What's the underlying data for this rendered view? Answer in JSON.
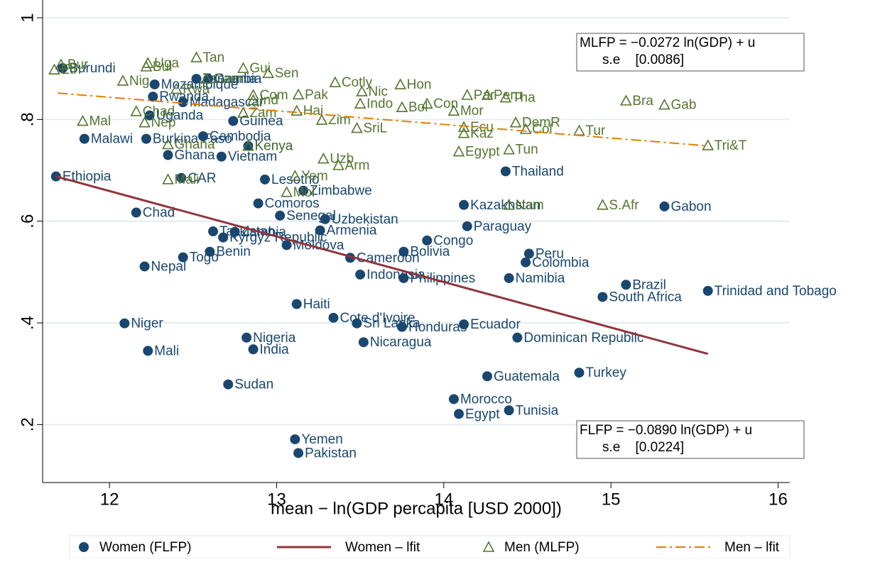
{
  "chart_data": {
    "type": "scatter",
    "xlabel": "mean − ln(GDP percapita [USD 2000])",
    "xlim": [
      11.6,
      16.07
    ],
    "ylim": [
      0.086,
      1.035
    ],
    "xticks": [
      12,
      13,
      14,
      15,
      16
    ],
    "yticks": [
      {
        "value": 0.2,
        "label": ".2"
      },
      {
        "value": 0.4,
        "label": ".4"
      },
      {
        "value": 0.6,
        "label": ".6"
      },
      {
        "value": 0.8,
        "label": ".8"
      },
      1
    ],
    "grid": true,
    "series": [
      {
        "name": "Women (FLFP)",
        "marker": "circle",
        "color": "#1a476f",
        "point_labels": [
          "Ethiopia",
          "Burundi",
          "Malawi",
          "Niger",
          "Chad",
          "Nepal",
          "Burkina Faso",
          "Mali",
          "Uganda",
          "Rwanda",
          "Mozambique",
          "Ghana",
          "CAR",
          "Madagascar",
          "Togo",
          "Tanzania",
          "Gambia",
          "Cambodia",
          "Benin",
          "Tajikistan",
          "Vietnam",
          "Kyrgyz Republic",
          "Sudan",
          "Zambia",
          "Guinea",
          "Nigeria",
          "Kenya",
          "India",
          "Comoros",
          "Lesotho",
          "Senegal",
          "Moldova",
          "Yemen",
          "Haiti",
          "Pakistan",
          "Zimbabwe",
          "Armenia",
          "Uzbekistan",
          "Cote d'Ivoire",
          "Cameroon",
          "Sri Lanka",
          "Indonesia",
          "Nicaragua",
          "Honduras",
          "Bolivia",
          "Philippines",
          "Congo",
          "Morocco",
          "Egypt",
          "Kazakhstan",
          "Ecuador",
          "Paraguay",
          "Guatemala",
          "Thailand",
          "Namibia",
          "Tunisia",
          "Dominican Republic",
          "Colombia",
          "Peru",
          "Turkey",
          "South Africa",
          "Brazil",
          "Gabon",
          "Trinidad and Tobago"
        ],
        "x": [
          11.68,
          11.72,
          11.85,
          12.09,
          12.16,
          12.21,
          12.22,
          12.23,
          12.24,
          12.26,
          12.27,
          12.35,
          12.43,
          12.44,
          12.44,
          12.52,
          12.59,
          12.56,
          12.6,
          12.62,
          12.67,
          12.68,
          12.71,
          12.75,
          12.74,
          12.82,
          12.83,
          12.86,
          12.89,
          12.93,
          13.02,
          13.06,
          13.11,
          13.12,
          13.13,
          13.16,
          13.26,
          13.29,
          13.34,
          13.44,
          13.48,
          13.5,
          13.52,
          13.75,
          13.76,
          13.76,
          13.9,
          14.06,
          14.09,
          14.12,
          14.12,
          14.14,
          14.26,
          14.37,
          14.39,
          14.39,
          14.44,
          14.49,
          14.51,
          14.81,
          14.95,
          15.09,
          15.32,
          15.58
        ],
        "values": [
          0.688,
          0.901,
          0.762,
          0.399,
          0.617,
          0.511,
          0.762,
          0.345,
          0.808,
          0.845,
          0.869,
          0.73,
          0.685,
          0.834,
          0.529,
          0.88,
          0.88,
          0.767,
          0.54,
          0.58,
          0.727,
          0.568,
          0.279,
          0.579,
          0.797,
          0.371,
          0.748,
          0.348,
          0.635,
          0.682,
          0.611,
          0.553,
          0.171,
          0.437,
          0.144,
          0.66,
          0.582,
          0.604,
          0.41,
          0.528,
          0.399,
          0.495,
          0.362,
          0.392,
          0.54,
          0.488,
          0.562,
          0.25,
          0.221,
          0.632,
          0.397,
          0.59,
          0.295,
          0.698,
          0.488,
          0.228,
          0.371,
          0.519,
          0.536,
          0.302,
          0.451,
          0.475,
          0.629,
          0.463
        ]
      },
      {
        "name": "Women – lfit",
        "marker": "line",
        "dash": "solid",
        "color": "#90353b",
        "x": [
          11.68,
          15.58
        ],
        "values": [
          0.688,
          0.339
        ]
      },
      {
        "name": "Men (MLFP)",
        "marker": "triangle",
        "color": "#55752f",
        "point_labels": [
          "Eth",
          "Bur",
          "Mal",
          "Nig",
          "Chad",
          "Nep",
          "Bul",
          "Uga",
          "Ghana",
          "Mali",
          "Rwa",
          "Tan",
          "Gam",
          "Zam",
          "Gui",
          "Kenya",
          "Com",
          "Ind",
          "Sen",
          "Mol",
          "Yem",
          "Hai",
          "Pak",
          "Zim",
          "Uzb",
          "Cotly",
          "Arm",
          "SriL",
          "Indo",
          "Nic",
          "Hon",
          "Bol",
          "Con",
          "Mor",
          "Egypt",
          "Ecu",
          "Kaz",
          "Par",
          "Peru",
          "Tha",
          "Tun",
          "Nam",
          "DemR",
          "Col",
          "Tur",
          "S.Afr",
          "Bra",
          "Gab",
          "Tri&T"
        ],
        "x": [
          11.67,
          11.71,
          11.84,
          12.08,
          12.16,
          12.21,
          12.22,
          12.23,
          12.35,
          12.35,
          12.4,
          12.52,
          12.58,
          12.8,
          12.8,
          12.83,
          12.86,
          12.86,
          12.95,
          13.06,
          13.11,
          13.12,
          13.13,
          13.27,
          13.28,
          13.35,
          13.37,
          13.48,
          13.5,
          13.51,
          13.74,
          13.75,
          13.9,
          14.06,
          14.09,
          14.12,
          14.12,
          14.14,
          14.26,
          14.37,
          14.39,
          14.39,
          14.43,
          14.49,
          14.81,
          14.95,
          15.09,
          15.32,
          15.58
        ],
        "values": [
          0.898,
          0.908,
          0.797,
          0.876,
          0.816,
          0.794,
          0.904,
          0.911,
          0.751,
          0.682,
          0.86,
          0.922,
          0.88,
          0.813,
          0.901,
          0.748,
          0.848,
          0.838,
          0.891,
          0.657,
          0.689,
          0.817,
          0.849,
          0.799,
          0.723,
          0.873,
          0.71,
          0.783,
          0.831,
          0.855,
          0.869,
          0.824,
          0.831,
          0.817,
          0.737,
          0.785,
          0.773,
          0.848,
          0.848,
          0.843,
          0.741,
          0.632,
          0.794,
          0.781,
          0.778,
          0.632,
          0.837,
          0.829,
          0.749
        ]
      },
      {
        "name": "Men – lfit",
        "marker": "line",
        "dash": "dashdot",
        "color": "#e37e00",
        "x": [
          11.69,
          15.58
        ],
        "values": [
          0.852,
          0.748
        ]
      }
    ],
    "annotations": [
      {
        "lines": [
          "MLFP = −0.0272 ln(GDP) + u",
          "s.e    [0.0086]"
        ],
        "position": "top"
      },
      {
        "lines": [
          "FLFP = −0.0890 ln(GDP) + u",
          "s.e    [0.0224]"
        ],
        "position": "bottom"
      }
    ]
  }
}
